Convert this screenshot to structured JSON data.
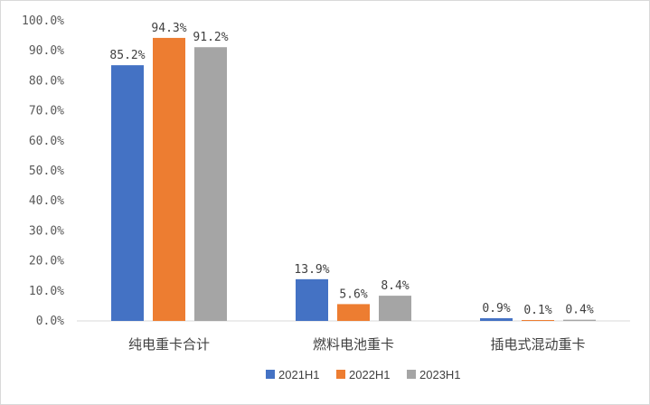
{
  "chart_data": {
    "type": "bar",
    "categories": [
      "纯电重卡合计",
      "燃料电池重卡",
      "插电式混动重卡"
    ],
    "series": [
      {
        "name": "2021H1",
        "color": "#4472c4",
        "values": [
          85.2,
          13.9,
          0.9
        ],
        "labels": [
          "85.2%",
          "13.9%",
          "0.9%"
        ]
      },
      {
        "name": "2022H1",
        "color": "#ed7d31",
        "values": [
          94.3,
          5.6,
          0.1
        ],
        "labels": [
          "94.3%",
          "5.6%",
          "0.1%"
        ]
      },
      {
        "name": "2023H1",
        "color": "#a5a5a5",
        "values": [
          91.2,
          8.4,
          0.4
        ],
        "labels": [
          "91.2%",
          "8.4%",
          "0.4%"
        ]
      }
    ],
    "yticks": [
      "0.0%",
      "10.0%",
      "20.0%",
      "30.0%",
      "40.0%",
      "50.0%",
      "60.0%",
      "70.0%",
      "80.0%",
      "90.0%",
      "100.0%"
    ],
    "ylim": [
      0,
      100
    ],
    "grid": false,
    "legend_position": "bottom"
  }
}
